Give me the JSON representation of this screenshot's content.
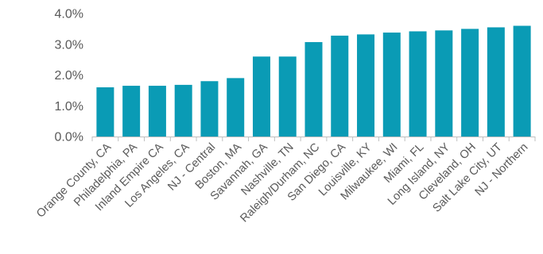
{
  "chart_data": {
    "type": "bar",
    "categories": [
      "Orange County, CA",
      "Philadelphia, PA",
      "Inland Empire CA",
      "Los Angeles, CA",
      "NJ - Central",
      "Boston, MA",
      "Savannah, GA",
      "Nashville, TN",
      "Raleigh/Durham, NC",
      "San Diego, CA",
      "Louisville, KY",
      "Milwaukee, WI",
      "Miami, FL",
      "Long Island, NY",
      "Cleveland, OH",
      "Salt Lake City, UT",
      "NJ - Northern"
    ],
    "values": [
      1.6,
      1.65,
      1.65,
      1.68,
      1.8,
      1.9,
      2.6,
      2.6,
      3.07,
      3.28,
      3.32,
      3.38,
      3.42,
      3.45,
      3.5,
      3.55,
      3.6
    ],
    "ylim": [
      0,
      4
    ],
    "yticks": [
      0,
      1,
      2,
      3,
      4
    ],
    "ytick_labels": [
      "0.0%",
      "1.0%",
      "2.0%",
      "3.0%",
      "4.0%"
    ],
    "grid": false,
    "bar_color": "#0a9bb5",
    "axis_color": "#bfbfbf"
  }
}
